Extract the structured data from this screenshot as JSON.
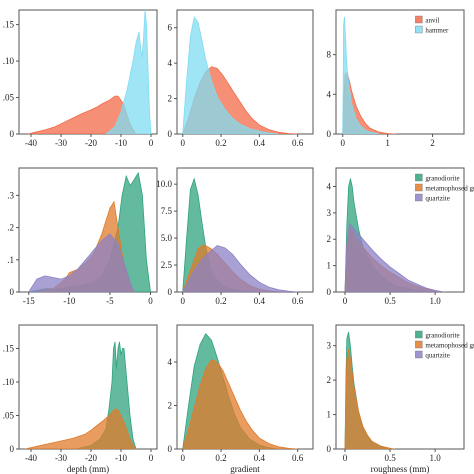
{
  "figure": {
    "colors": {
      "anvil": "#f26b4a",
      "hammer": "#7fdcf2",
      "granodiorite": "#2fa37f",
      "metamophosed granite": "#e07b2a",
      "quartzite": "#8c82c6"
    }
  },
  "chart_data": [
    {
      "type": "area",
      "xlabel": "",
      "ylabel": "",
      "xlim": [
        -44,
        2
      ],
      "ylim": [
        0,
        0.17
      ],
      "xticks": [
        -40,
        -30,
        -20,
        -10,
        0
      ],
      "yticks": [
        0,
        0.05,
        0.1,
        0.15
      ],
      "yticklabels": [
        "0",
        ".05",
        ".10",
        ".15"
      ],
      "series": [
        {
          "name": "anvil",
          "color": "#f26b4a",
          "x": [
            -41,
            -38,
            -35,
            -32,
            -29,
            -26,
            -23,
            -20,
            -18,
            -16,
            -14,
            -12,
            -11,
            -10,
            -9,
            -8,
            -7,
            -6,
            -5
          ],
          "y": [
            0,
            0.003,
            0.006,
            0.01,
            0.016,
            0.022,
            0.028,
            0.033,
            0.037,
            0.042,
            0.046,
            0.052,
            0.052,
            0.046,
            0.04,
            0.026,
            0.014,
            0.006,
            0
          ]
        },
        {
          "name": "hammer",
          "color": "#7fdcf2",
          "x": [
            -15,
            -12,
            -10,
            -8,
            -6,
            -5,
            -4,
            -3.5,
            -3,
            -2.5,
            -2,
            -1.5,
            -1,
            -0.5,
            0
          ],
          "y": [
            0,
            0.01,
            0.03,
            0.06,
            0.1,
            0.125,
            0.14,
            0.12,
            0.105,
            0.13,
            0.17,
            0.15,
            0.09,
            0.03,
            0
          ]
        }
      ]
    },
    {
      "type": "area",
      "xlabel": "",
      "ylabel": "",
      "xlim": [
        -0.03,
        0.68
      ],
      "ylim": [
        0,
        7.0
      ],
      "xticks": [
        0,
        0.2,
        0.4,
        0.6
      ],
      "yticks": [
        0,
        2,
        4,
        6
      ],
      "xticklabels": [
        "0",
        "0.2",
        "0.4",
        "0.6"
      ],
      "yticklabels": [
        "0",
        "2",
        "4",
        "6"
      ],
      "series": [
        {
          "name": "anvil",
          "color": "#f26b4a",
          "x": [
            0,
            0.03,
            0.06,
            0.09,
            0.12,
            0.15,
            0.18,
            0.21,
            0.24,
            0.27,
            0.3,
            0.33,
            0.36,
            0.4,
            0.45,
            0.5,
            0.55,
            0.6
          ],
          "y": [
            0,
            0.9,
            2.0,
            2.9,
            3.5,
            3.8,
            3.7,
            3.3,
            2.8,
            2.3,
            1.8,
            1.3,
            0.9,
            0.5,
            0.25,
            0.1,
            0.03,
            0
          ]
        },
        {
          "name": "hammer",
          "color": "#7fdcf2",
          "x": [
            0,
            0.02,
            0.04,
            0.06,
            0.08,
            0.1,
            0.12,
            0.15,
            0.18,
            0.22,
            0.26,
            0.3,
            0.35,
            0.4,
            0.45,
            0.5
          ],
          "y": [
            0,
            3.0,
            5.5,
            6.6,
            6.3,
            5.3,
            4.2,
            3.0,
            2.1,
            1.4,
            0.9,
            0.55,
            0.3,
            0.15,
            0.05,
            0
          ]
        }
      ]
    },
    {
      "type": "area",
      "xlabel": "",
      "ylabel": "",
      "xlim": [
        -0.15,
        2.7
      ],
      "ylim": [
        0,
        12.5
      ],
      "xticks": [
        0,
        1,
        2
      ],
      "yticks": [
        0,
        4,
        8
      ],
      "xticklabels": [
        "0",
        "1",
        "2"
      ],
      "yticklabels": [
        "0",
        "4",
        "8"
      ],
      "legend": {
        "position": "top-right",
        "entries": [
          "anvil",
          "hammer"
        ]
      },
      "series": [
        {
          "name": "anvil",
          "color": "#f26b4a",
          "x": [
            0,
            0.02,
            0.05,
            0.1,
            0.15,
            0.2,
            0.3,
            0.4,
            0.5,
            0.6,
            0.8,
            1.0,
            1.2
          ],
          "y": [
            0,
            3.0,
            6.0,
            6.2,
            5.3,
            4.3,
            2.8,
            1.8,
            1.1,
            0.6,
            0.2,
            0.05,
            0
          ]
        },
        {
          "name": "hammer",
          "color": "#7fdcf2",
          "x": [
            0,
            0.01,
            0.02,
            0.04,
            0.06,
            0.08,
            0.1,
            0.15,
            0.2,
            0.3,
            0.4,
            0.5,
            0.6,
            0.8
          ],
          "y": [
            0,
            5.0,
            11.0,
            11.8,
            10.0,
            8.0,
            6.5,
            4.5,
            3.0,
            1.5,
            0.8,
            0.4,
            0.2,
            0
          ]
        }
      ]
    },
    {
      "type": "area",
      "xlabel": "",
      "ylabel": "",
      "xlim": [
        -16.2,
        0.8
      ],
      "ylim": [
        0,
        0.385
      ],
      "xticks": [
        -15,
        -10,
        -5,
        0
      ],
      "yticks": [
        0,
        0.1,
        0.2,
        0.3
      ],
      "yticklabels": [
        "0",
        ".1",
        ".2",
        ".3"
      ],
      "series": [
        {
          "name": "granodiorite",
          "color": "#2fa37f",
          "x": [
            -15,
            -13,
            -11,
            -9,
            -7,
            -6,
            -5,
            -4,
            -3.5,
            -3,
            -2.5,
            -2,
            -1.5,
            -1,
            -0.5,
            0
          ],
          "y": [
            0,
            0.01,
            0.01,
            0.02,
            0.03,
            0.05,
            0.1,
            0.2,
            0.3,
            0.36,
            0.33,
            0.35,
            0.37,
            0.3,
            0.1,
            0
          ]
        },
        {
          "name": "metamophosed granite",
          "color": "#e07b2a",
          "x": [
            -14,
            -12,
            -11,
            -10.5,
            -10,
            -9,
            -8,
            -7,
            -6,
            -5,
            -4.5,
            -4,
            -3.5,
            -3,
            -2.5,
            -2
          ],
          "y": [
            0,
            0.01,
            0.03,
            0.04,
            0.06,
            0.07,
            0.09,
            0.12,
            0.18,
            0.26,
            0.28,
            0.2,
            0.12,
            0.06,
            0.02,
            0
          ]
        },
        {
          "name": "quartzite",
          "color": "#8c82c6",
          "x": [
            -15,
            -14,
            -13,
            -12,
            -11,
            -10,
            -9,
            -8,
            -7,
            -6,
            -5,
            -4,
            -3,
            -2.5,
            -2
          ],
          "y": [
            0,
            0.04,
            0.05,
            0.045,
            0.04,
            0.05,
            0.07,
            0.1,
            0.13,
            0.16,
            0.18,
            0.15,
            0.07,
            0.03,
            0
          ]
        }
      ]
    },
    {
      "type": "area",
      "xlabel": "",
      "ylabel": "",
      "xlim": [
        -0.03,
        0.68
      ],
      "ylim": [
        0,
        11.5
      ],
      "xticks": [
        0,
        0.2,
        0.4,
        0.6
      ],
      "yticks": [
        0,
        2.5,
        5.0,
        7.5,
        10.0
      ],
      "xticklabels": [
        "0",
        "0.2",
        "0.4",
        "0.6"
      ],
      "yticklabels": [
        "0",
        "2.5",
        "5.0",
        "7.5",
        "10.0"
      ],
      "series": [
        {
          "name": "granodiorite",
          "color": "#2fa37f",
          "x": [
            0,
            0.02,
            0.04,
            0.06,
            0.08,
            0.1,
            0.12,
            0.14,
            0.16,
            0.2,
            0.25,
            0.3,
            0.35,
            0.4
          ],
          "y": [
            0,
            5.0,
            9.5,
            10.5,
            9.0,
            6.5,
            4.2,
            2.5,
            1.5,
            0.7,
            0.3,
            0.12,
            0.05,
            0
          ]
        },
        {
          "name": "metamophosed granite",
          "color": "#e07b2a",
          "x": [
            0,
            0.03,
            0.06,
            0.08,
            0.1,
            0.12,
            0.15,
            0.18,
            0.22,
            0.26,
            0.3,
            0.35,
            0.4,
            0.45,
            0.5,
            0.55
          ],
          "y": [
            0,
            1.5,
            3.0,
            4.0,
            4.3,
            4.3,
            4.0,
            3.5,
            2.7,
            1.9,
            1.2,
            0.6,
            0.25,
            0.1,
            0.04,
            0
          ]
        },
        {
          "name": "quartzite",
          "color": "#8c82c6",
          "x": [
            0,
            0.03,
            0.06,
            0.1,
            0.14,
            0.18,
            0.22,
            0.26,
            0.3,
            0.35,
            0.4,
            0.45,
            0.5,
            0.55,
            0.6
          ],
          "y": [
            0,
            1.0,
            2.0,
            3.0,
            3.7,
            4.3,
            4.1,
            3.5,
            2.6,
            1.6,
            0.9,
            0.45,
            0.2,
            0.07,
            0
          ]
        }
      ]
    },
    {
      "type": "area",
      "xlabel": "",
      "ylabel": "",
      "xlim": [
        -0.1,
        1.32
      ],
      "ylim": [
        0,
        4.7
      ],
      "xticks": [
        0,
        0.5,
        1.0
      ],
      "yticks": [
        0,
        1,
        2,
        3,
        4
      ],
      "xticklabels": [
        "0",
        "0.5",
        "1.0"
      ],
      "yticklabels": [
        "0",
        "1",
        "2",
        "3",
        "4"
      ],
      "legend": {
        "position": "top-right",
        "entries": [
          "granodiorite",
          "metamophosed granite",
          "quartzite"
        ]
      },
      "series": [
        {
          "name": "granodiorite",
          "color": "#2fa37f",
          "x": [
            0,
            0.02,
            0.04,
            0.06,
            0.08,
            0.1,
            0.15,
            0.2,
            0.3,
            0.4,
            0.5,
            0.6,
            0.8,
            1.0
          ],
          "y": [
            0,
            2.5,
            4.0,
            4.3,
            4.0,
            3.4,
            2.4,
            1.7,
            1.0,
            0.6,
            0.35,
            0.2,
            0.06,
            0
          ]
        },
        {
          "name": "metamophosed granite",
          "color": "#e07b2a",
          "x": [
            0,
            0.02,
            0.05,
            0.1,
            0.15,
            0.2,
            0.3,
            0.4,
            0.5,
            0.6,
            0.7,
            0.8,
            0.9,
            1.0,
            1.1
          ],
          "y": [
            0,
            1.8,
            2.5,
            2.2,
            1.9,
            1.7,
            1.3,
            1.0,
            0.75,
            0.55,
            0.35,
            0.22,
            0.12,
            0.05,
            0
          ]
        },
        {
          "name": "quartzite",
          "color": "#8c82c6",
          "x": [
            0,
            0.02,
            0.05,
            0.1,
            0.15,
            0.2,
            0.3,
            0.4,
            0.5,
            0.6,
            0.7,
            0.8,
            0.9,
            1.0,
            1.1
          ],
          "y": [
            0,
            1.8,
            2.6,
            2.4,
            2.2,
            2.0,
            1.6,
            1.25,
            0.95,
            0.7,
            0.45,
            0.3,
            0.15,
            0.06,
            0
          ]
        }
      ]
    },
    {
      "type": "area",
      "xlabel": "depth (mm)",
      "ylabel": "",
      "xlim": [
        -44,
        2
      ],
      "ylim": [
        0,
        0.185
      ],
      "xticks": [
        -40,
        -30,
        -20,
        -10,
        0
      ],
      "yticks": [
        0,
        0.05,
        0.1,
        0.15
      ],
      "yticklabels": [
        "0",
        ".05",
        ".10",
        ".15"
      ],
      "series": [
        {
          "name": "granodiorite",
          "color": "#2fa37f",
          "x": [
            -25,
            -20,
            -17,
            -15,
            -14,
            -13,
            -12.5,
            -12,
            -11.5,
            -11,
            -10.5,
            -10,
            -9.5,
            -9,
            -8,
            -7,
            -6,
            -5
          ],
          "y": [
            0,
            0.005,
            0.015,
            0.03,
            0.06,
            0.1,
            0.15,
            0.16,
            0.12,
            0.15,
            0.16,
            0.14,
            0.15,
            0.15,
            0.1,
            0.05,
            0.015,
            0
          ]
        },
        {
          "name": "metamophosed granite",
          "color": "#e07b2a",
          "x": [
            -42,
            -38,
            -34,
            -30,
            -26,
            -22,
            -20,
            -18,
            -16,
            -14,
            -13,
            -12,
            -11,
            -10,
            -9,
            -8,
            -7,
            -6,
            -5
          ],
          "y": [
            0,
            0.004,
            0.008,
            0.012,
            0.016,
            0.022,
            0.028,
            0.035,
            0.042,
            0.05,
            0.055,
            0.06,
            0.058,
            0.05,
            0.04,
            0.028,
            0.015,
            0.006,
            0
          ]
        }
      ]
    },
    {
      "type": "area",
      "xlabel": "gradient",
      "ylabel": "",
      "xlim": [
        -0.03,
        0.68
      ],
      "ylim": [
        0,
        5.7
      ],
      "xticks": [
        0,
        0.2,
        0.4,
        0.6
      ],
      "yticks": [
        0,
        2,
        4
      ],
      "xticklabels": [
        "0",
        "0.2",
        "0.4",
        "0.6"
      ],
      "yticklabels": [
        "0",
        "2",
        "4"
      ],
      "series": [
        {
          "name": "granodiorite",
          "color": "#2fa37f",
          "x": [
            0,
            0.03,
            0.06,
            0.09,
            0.12,
            0.15,
            0.18,
            0.21,
            0.24,
            0.27,
            0.3,
            0.35,
            0.4,
            0.45,
            0.5
          ],
          "y": [
            0,
            2.0,
            3.8,
            4.8,
            5.3,
            5.0,
            4.2,
            3.3,
            2.4,
            1.6,
            1.0,
            0.45,
            0.18,
            0.06,
            0
          ]
        },
        {
          "name": "metamophosed granite",
          "color": "#e07b2a",
          "x": [
            0,
            0.03,
            0.06,
            0.09,
            0.12,
            0.15,
            0.18,
            0.21,
            0.24,
            0.27,
            0.3,
            0.33,
            0.36,
            0.4,
            0.45,
            0.5,
            0.55,
            0.6
          ],
          "y": [
            0,
            0.9,
            1.9,
            2.9,
            3.7,
            4.1,
            4.0,
            3.6,
            3.0,
            2.4,
            1.8,
            1.3,
            0.9,
            0.5,
            0.25,
            0.1,
            0.03,
            0
          ]
        }
      ]
    },
    {
      "type": "area",
      "xlabel": "roughness (mm)",
      "ylabel": "",
      "xlim": [
        -0.1,
        1.32
      ],
      "ylim": [
        0,
        3.6
      ],
      "xticks": [
        0,
        0.5,
        1.0
      ],
      "yticks": [
        0,
        1,
        2,
        3
      ],
      "xticklabels": [
        "0",
        "0.5",
        "1.0"
      ],
      "yticklabels": [
        "0",
        "1",
        "2",
        "3"
      ],
      "legend": {
        "position": "top-right",
        "entries": [
          "granodiorite",
          "metamophosed granite",
          "quartzite"
        ]
      },
      "series": [
        {
          "name": "granodiorite",
          "color": "#2fa37f",
          "x": [
            0,
            0.01,
            0.02,
            0.04,
            0.06,
            0.08,
            0.1,
            0.15,
            0.2,
            0.25,
            0.3,
            0.4,
            0.5
          ],
          "y": [
            0,
            2.0,
            3.2,
            3.4,
            3.0,
            2.4,
            1.9,
            1.1,
            0.6,
            0.35,
            0.2,
            0.07,
            0
          ]
        },
        {
          "name": "metamophosed granite",
          "color": "#e07b2a",
          "x": [
            0,
            0.01,
            0.02,
            0.04,
            0.06,
            0.08,
            0.1,
            0.15,
            0.2,
            0.25,
            0.3,
            0.4,
            0.5,
            0.55
          ],
          "y": [
            0,
            1.5,
            2.6,
            2.9,
            2.6,
            2.2,
            1.8,
            1.1,
            0.65,
            0.4,
            0.22,
            0.08,
            0.02,
            0
          ]
        }
      ]
    }
  ]
}
